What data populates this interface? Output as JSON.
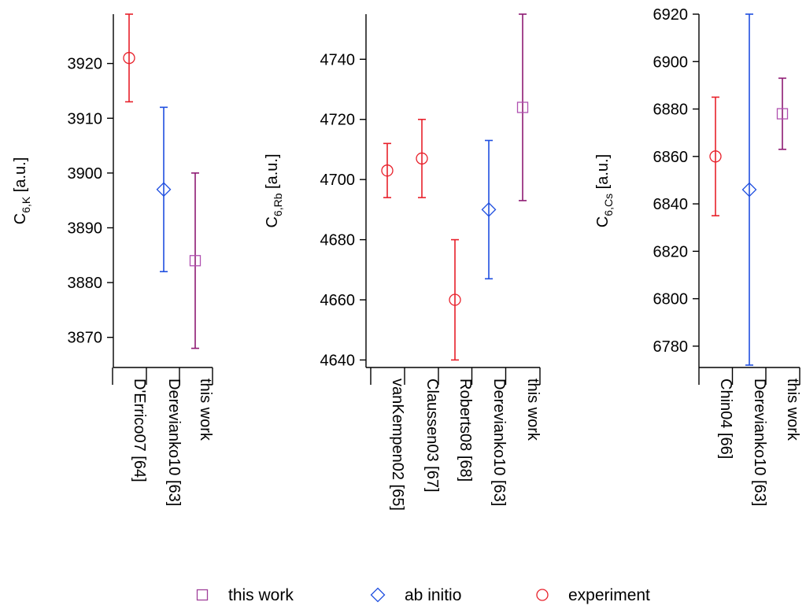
{
  "chart_data": [
    {
      "type": "errorbar",
      "ylabel": {
        "main": "C",
        "sub": "6,K",
        "unit": "[a.u.]"
      },
      "ylim": [
        3864.5,
        3929
      ],
      "yticks": [
        3870,
        3880,
        3890,
        3900,
        3910,
        3920
      ],
      "categories": [
        "D'Errico07 [64]",
        "Derevianko10 [63]",
        "this work"
      ],
      "points": [
        {
          "category": "D'Errico07 [64]",
          "value": 3921,
          "lower": 3913,
          "upper": 3929,
          "kind": "experiment"
        },
        {
          "category": "Derevianko10 [63]",
          "value": 3897,
          "lower": 3882,
          "upper": 3912,
          "kind": "ab initio"
        },
        {
          "category": "this work",
          "value": 3884,
          "lower": 3868,
          "upper": 3900,
          "kind": "this work"
        }
      ]
    },
    {
      "type": "errorbar",
      "ylabel": {
        "main": "C",
        "sub": "6,Rb",
        "unit": "[a.u.]"
      },
      "ylim": [
        4637.5,
        4755
      ],
      "yticks": [
        4640,
        4660,
        4680,
        4700,
        4720,
        4740
      ],
      "categories": [
        "vanKempen02 [65]",
        "Claussen03 [67]",
        "Roberts08 [68]",
        "Derevianko10 [63]",
        "this work"
      ],
      "points": [
        {
          "category": "vanKempen02 [65]",
          "value": 4703,
          "lower": 4694,
          "upper": 4712,
          "kind": "experiment"
        },
        {
          "category": "Claussen03 [67]",
          "value": 4707,
          "lower": 4694,
          "upper": 4720,
          "kind": "experiment"
        },
        {
          "category": "Roberts08 [68]",
          "value": 4660,
          "lower": 4640,
          "upper": 4680,
          "kind": "experiment"
        },
        {
          "category": "Derevianko10 [63]",
          "value": 4690,
          "lower": 4667,
          "upper": 4713,
          "kind": "ab initio"
        },
        {
          "category": "this work",
          "value": 4724,
          "lower": 4693,
          "upper": 4755,
          "kind": "this work"
        }
      ]
    },
    {
      "type": "errorbar",
      "ylabel": {
        "main": "C",
        "sub": "6,Cs",
        "unit": "[a.u.]"
      },
      "ylim": [
        6771,
        6920
      ],
      "yticks": [
        6780,
        6800,
        6820,
        6840,
        6860,
        6880,
        6900,
        6920
      ],
      "categories": [
        "Chin04 [66]",
        "Derevianko10 [63]",
        "this work"
      ],
      "points": [
        {
          "category": "Chin04 [66]",
          "value": 6860,
          "lower": 6835,
          "upper": 6885,
          "kind": "experiment"
        },
        {
          "category": "Derevianko10 [63]",
          "value": 6846,
          "lower": 6772,
          "upper": 6920,
          "kind": "ab initio"
        },
        {
          "category": "this work",
          "value": 6878,
          "lower": 6863,
          "upper": 6893,
          "kind": "this work"
        }
      ]
    }
  ],
  "legend": [
    {
      "label": "this work",
      "marker": "square",
      "color": "#a0409a"
    },
    {
      "label": "ab initio",
      "marker": "diamond",
      "color": "#1f4fe0"
    },
    {
      "label": "experiment",
      "marker": "circle",
      "color": "#e8202a"
    }
  ],
  "kind_colors": {
    "experiment": {
      "bar": "#e8202a",
      "marker": "#e8202a"
    },
    "ab initio": {
      "bar": "#1f4fe0",
      "marker": "#1f4fe0"
    },
    "this work": {
      "bar": "#8e1a73",
      "marker": "#b050b0"
    }
  }
}
